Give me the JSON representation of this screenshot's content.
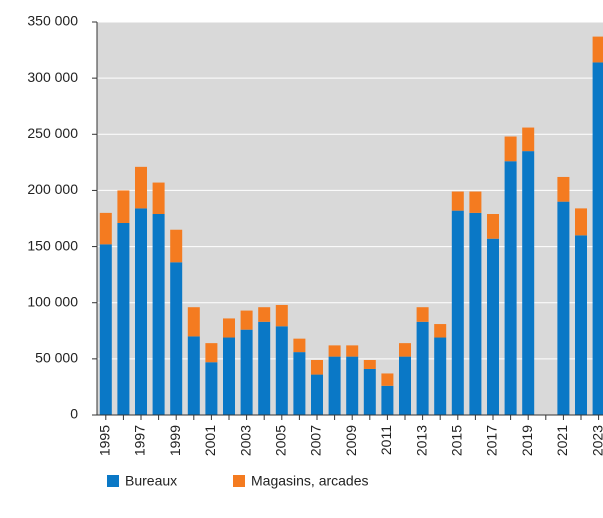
{
  "chart_data": {
    "type": "stacked-bar",
    "categories": [
      "1995",
      null,
      "1997",
      null,
      "1999",
      null,
      "2001",
      null,
      "2003",
      null,
      "2005",
      null,
      "2007",
      null,
      "2009",
      null,
      "2011",
      null,
      "2013",
      null,
      "2015",
      null,
      "2017",
      null,
      "2019",
      null,
      "2021",
      null,
      "2023"
    ],
    "series": [
      {
        "name": "Bureaux",
        "color": "#0a78c6",
        "values": [
          152000,
          171000,
          184000,
          179000,
          136000,
          70000,
          47000,
          69000,
          76000,
          83000,
          79000,
          56000,
          36000,
          52000,
          52000,
          41000,
          26000,
          52000,
          83000,
          69000,
          182000,
          180000,
          157000,
          226000,
          235000,
          null,
          190000,
          160000,
          314000
        ]
      },
      {
        "name": "Magasins, arcades",
        "color": "#f47b20",
        "values": [
          28000,
          29000,
          37000,
          28000,
          29000,
          26000,
          17000,
          17000,
          17000,
          13000,
          19000,
          12000,
          13000,
          10000,
          10000,
          8000,
          11000,
          12000,
          13000,
          12000,
          17000,
          19000,
          22000,
          22000,
          21000,
          null,
          22000,
          24000,
          23000
        ]
      }
    ],
    "ylim": [
      0,
      350000
    ],
    "yticks": [
      0,
      {
        "value": 50000,
        "label": "50 000"
      },
      {
        "value": 100000,
        "label": "100 000"
      },
      {
        "value": 150000,
        "label": "150 000"
      },
      {
        "value": 200000,
        "label": "200 000"
      },
      {
        "value": 250000,
        "label": "250 000"
      },
      {
        "value": 300000,
        "label": "300 000"
      },
      {
        "value": 350000,
        "label": "350 000"
      }
    ],
    "grid": true
  }
}
